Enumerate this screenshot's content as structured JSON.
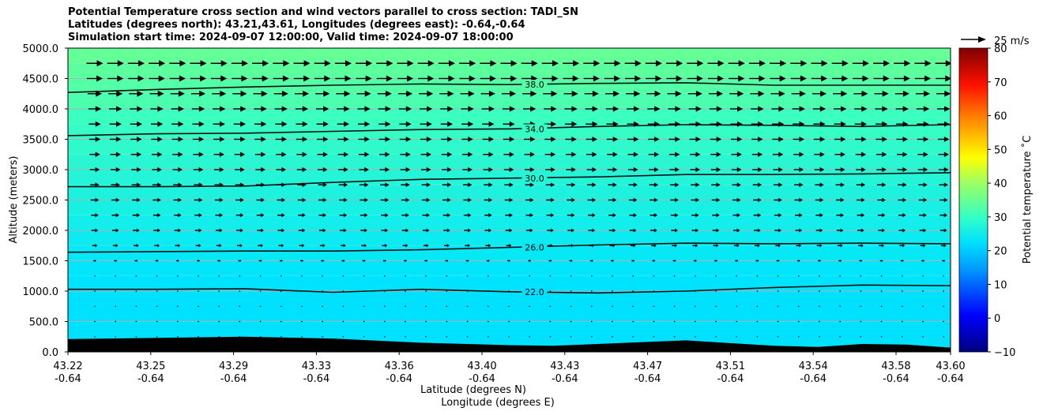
{
  "chart_data": {
    "type": "heatmap",
    "title_lines": [
      "Potential Temperature cross section and wind vectors parallel to cross section: TADI_SN",
      "Latitudes (degrees north): 43.21,43.61, Longitudes (degrees east): -0.64,-0.64",
      "Simulation start time: 2024-09-07 12:00:00, Valid time: 2024-09-07 18:00:00"
    ],
    "ylabel": "Altitude (meters)",
    "xlabel_line1": "Latitude (degrees N)",
    "xlabel_line2": "Longitude (degrees E)",
    "ylim": [
      0,
      5000
    ],
    "y_ticks": [
      "0.0",
      "500.0",
      "1000.0",
      "1500.0",
      "2000.0",
      "2500.0",
      "3000.0",
      "3500.0",
      "4000.0",
      "4500.0",
      "5000.0"
    ],
    "y_tick_values": [
      0,
      500,
      1000,
      1500,
      2000,
      2500,
      3000,
      3500,
      4000,
      4500,
      5000
    ],
    "x_ticks": [
      {
        "lat": "43.22",
        "lon": "-0.64"
      },
      {
        "lat": "43.25",
        "lon": "-0.64"
      },
      {
        "lat": "43.29",
        "lon": "-0.64"
      },
      {
        "lat": "43.33",
        "lon": "-0.64"
      },
      {
        "lat": "43.36",
        "lon": "-0.64"
      },
      {
        "lat": "43.40",
        "lon": "-0.64"
      },
      {
        "lat": "43.43",
        "lon": "-0.64"
      },
      {
        "lat": "43.47",
        "lon": "-0.64"
      },
      {
        "lat": "43.51",
        "lon": "-0.64"
      },
      {
        "lat": "43.54",
        "lon": "-0.64"
      },
      {
        "lat": "43.58",
        "lon": "-0.64"
      },
      {
        "lat": "43.60",
        "lon": "-0.64"
      }
    ],
    "grid": true,
    "temperature_bands": [
      {
        "from": 0,
        "to": 1000,
        "temp": 22
      },
      {
        "from": 1000,
        "to": 1250,
        "temp": 23
      },
      {
        "from": 1250,
        "to": 1500,
        "temp": 24
      },
      {
        "from": 1500,
        "to": 1750,
        "temp": 25
      },
      {
        "from": 1750,
        "to": 2000,
        "temp": 26
      },
      {
        "from": 2000,
        "to": 2250,
        "temp": 27
      },
      {
        "from": 2250,
        "to": 2500,
        "temp": 28
      },
      {
        "from": 2500,
        "to": 2750,
        "temp": 29
      },
      {
        "from": 2750,
        "to": 3000,
        "temp": 30
      },
      {
        "from": 3000,
        "to": 3250,
        "temp": 31
      },
      {
        "from": 3250,
        "to": 3500,
        "temp": 32
      },
      {
        "from": 3500,
        "to": 3750,
        "temp": 33
      },
      {
        "from": 3750,
        "to": 4000,
        "temp": 34
      },
      {
        "from": 4000,
        "to": 4250,
        "temp": 35
      },
      {
        "from": 4250,
        "to": 4500,
        "temp": 36
      },
      {
        "from": 4500,
        "to": 4750,
        "temp": 37
      },
      {
        "from": 4750,
        "to": 5000,
        "temp": 38
      }
    ],
    "contours": [
      {
        "label": "22.0",
        "x": [
          0,
          0.1,
          0.2,
          0.3,
          0.4,
          0.5,
          0.6,
          0.7,
          0.8,
          0.9,
          1.0
        ],
        "altitude": [
          1030,
          1030,
          1040,
          980,
          1030,
          990,
          970,
          1000,
          1060,
          1100,
          1090
        ]
      },
      {
        "label": "26.0",
        "x": [
          0,
          0.1,
          0.2,
          0.3,
          0.4,
          0.5,
          0.6,
          0.7,
          0.8,
          0.9,
          1.0
        ],
        "altitude": [
          1640,
          1650,
          1660,
          1660,
          1680,
          1720,
          1760,
          1790,
          1780,
          1790,
          1780
        ]
      },
      {
        "label": "30.0",
        "x": [
          0,
          0.1,
          0.2,
          0.3,
          0.4,
          0.5,
          0.6,
          0.7,
          0.8,
          0.9,
          1.0
        ],
        "altitude": [
          2720,
          2720,
          2730,
          2790,
          2840,
          2860,
          2880,
          2920,
          2920,
          2930,
          2950
        ]
      },
      {
        "label": "34.0",
        "x": [
          0,
          0.1,
          0.2,
          0.3,
          0.4,
          0.5,
          0.6,
          0.7,
          0.8,
          0.9,
          1.0
        ],
        "altitude": [
          3560,
          3590,
          3600,
          3630,
          3660,
          3670,
          3710,
          3740,
          3730,
          3710,
          3740
        ]
      },
      {
        "label": "38.0",
        "x": [
          0,
          0.1,
          0.2,
          0.3,
          0.4,
          0.5,
          0.6,
          0.7,
          0.8,
          0.9,
          1.0
        ],
        "altitude": [
          4270,
          4320,
          4360,
          4390,
          4410,
          4400,
          4420,
          4430,
          4390,
          4390,
          4390
        ]
      }
    ],
    "terrain": {
      "x": [
        0,
        0.1,
        0.2,
        0.3,
        0.4,
        0.5,
        0.55,
        0.6,
        0.7,
        0.8,
        0.85,
        0.9,
        0.95,
        1.0
      ],
      "altitude": [
        210,
        230,
        250,
        220,
        150,
        110,
        100,
        130,
        190,
        100,
        80,
        130,
        120,
        70
      ]
    },
    "wind": {
      "reference_label": "25 m/s",
      "reference_speed": 25,
      "rows": [
        {
          "altitude": 4750,
          "speed": 22
        },
        {
          "altitude": 4500,
          "speed": 21
        },
        {
          "altitude": 4250,
          "speed": 19
        },
        {
          "altitude": 4000,
          "speed": 17
        },
        {
          "altitude": 3750,
          "speed": 16
        },
        {
          "altitude": 3500,
          "speed": 15
        },
        {
          "altitude": 3250,
          "speed": 14
        },
        {
          "altitude": 3000,
          "speed": 13
        },
        {
          "altitude": 2750,
          "speed": 12
        },
        {
          "altitude": 2500,
          "speed": 11
        },
        {
          "altitude": 2250,
          "speed": 10
        },
        {
          "altitude": 2000,
          "speed": 9
        },
        {
          "altitude": 1750,
          "speed": 7
        },
        {
          "altitude": 1500,
          "speed": 4
        },
        {
          "altitude": 1250,
          "speed": 1
        },
        {
          "altitude": 1000,
          "speed": 0.5
        },
        {
          "altitude": 750,
          "speed": 0.5
        },
        {
          "altitude": 500,
          "speed": -1
        },
        {
          "altitude": 250,
          "speed": -1
        }
      ]
    },
    "colorbar": {
      "label": "Potential temperature $^\\circ$C",
      "label_display": "Potential temperature ˚C",
      "range": [
        -10,
        80
      ],
      "ticks": [
        "−10",
        "0",
        "10",
        "20",
        "30",
        "40",
        "50",
        "60",
        "70",
        "80"
      ],
      "tick_values": [
        -10,
        0,
        10,
        20,
        30,
        40,
        50,
        60,
        70,
        80
      ]
    }
  }
}
